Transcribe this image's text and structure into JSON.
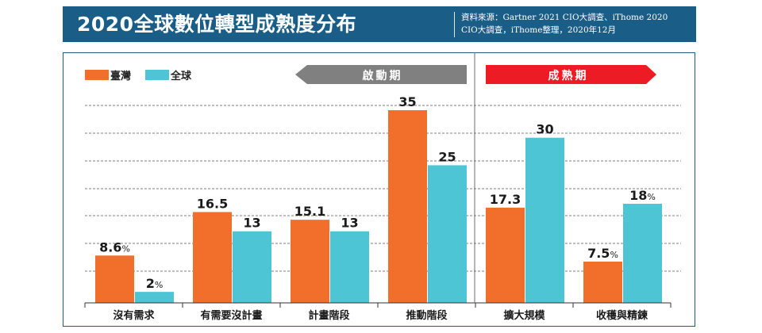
{
  "header": {
    "title": "2020全球數位轉型成熟度分布",
    "source_line1": "資料來源：Gartner 2021 CIO大調查、iThome 2020",
    "source_line2": "CIO大調查，iThome整理，2020年12月"
  },
  "colors": {
    "header_bg": "#1a5e88",
    "taiwan": "#f26f2b",
    "global": "#4ec5d4",
    "phase_start": "#808080",
    "phase_mature": "#ed1c24"
  },
  "legend": [
    {
      "name": "臺灣",
      "color": "#f26f2b"
    },
    {
      "name": "全球",
      "color": "#4ec5d4"
    }
  ],
  "phases": {
    "start_label": "啟動期",
    "mature_label": "成熟期"
  },
  "chart_data": {
    "type": "bar",
    "title": "2020全球數位轉型成熟度分布",
    "categories": [
      "沒有需求",
      "有需要沒計畫",
      "計畫階段",
      "推動階段",
      "擴大規模",
      "收穫與精鍊"
    ],
    "series": [
      {
        "name": "臺灣",
        "values": [
          8.6,
          16.5,
          15.1,
          35,
          17.3,
          7.5
        ],
        "labels": [
          "8.6",
          "16.5",
          "15.1",
          "35",
          "17.3",
          "7.5"
        ],
        "suffix": [
          "%",
          "",
          "",
          "",
          "",
          "%"
        ]
      },
      {
        "name": "全球",
        "values": [
          2,
          13,
          13,
          25,
          30,
          18
        ],
        "labels": [
          "2",
          "13",
          "13",
          "25",
          "30",
          "18"
        ],
        "suffix": [
          "%",
          "",
          "",
          "",
          "",
          "%"
        ]
      }
    ],
    "ylim": [
      0,
      35
    ],
    "grid": true,
    "legend_position": "top-left"
  }
}
